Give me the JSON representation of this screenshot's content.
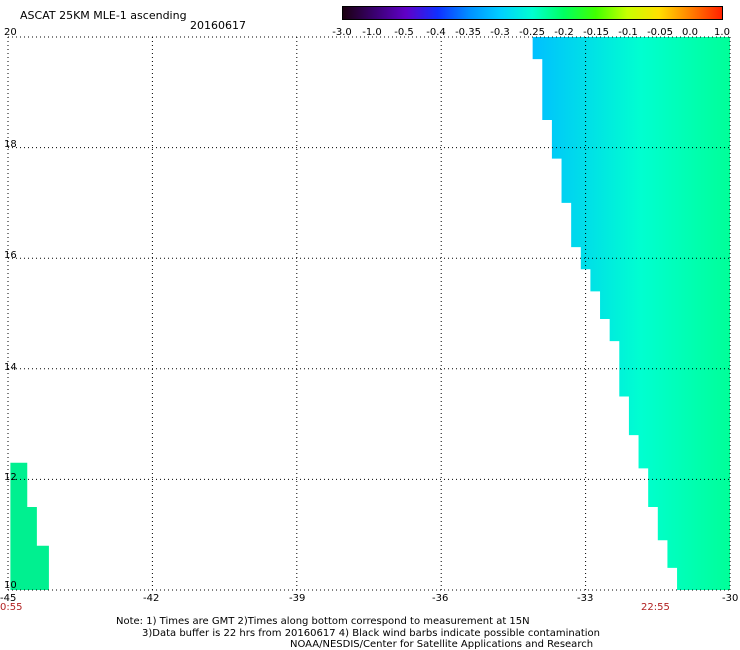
{
  "header": {
    "title": "ASCAT 25KM MLE-1 ascending",
    "date": "20160617"
  },
  "colorbar": {
    "labels": [
      "-3.0",
      "-1.0",
      "-0.5",
      "-0.4",
      "-0.35",
      "-0.3",
      "-0.25",
      "-0.2",
      "-0.15",
      "-0.1",
      "-0.05",
      "0.0",
      "1.0"
    ],
    "colors": [
      "#1a0010",
      "#3a0070",
      "#6000c8",
      "#1030ff",
      "#0090ff",
      "#00d0ff",
      "#00ffd0",
      "#00ff60",
      "#40ff00",
      "#c8ff00",
      "#ffe000",
      "#ff8000",
      "#ff2000"
    ]
  },
  "axes": {
    "x_ticks": [
      "-45",
      "-42",
      "-39",
      "-36",
      "-33",
      "-30"
    ],
    "y_ticks": [
      "20",
      "18",
      "16",
      "14",
      "12",
      "10"
    ],
    "x_range": [
      -45,
      -30
    ],
    "y_range": [
      10,
      20
    ],
    "grid": "dotted"
  },
  "times": {
    "left": "0:55",
    "right": "22:55"
  },
  "notes": {
    "line1": "Note: 1) Times are GMT 2)Times along bottom correspond to measurement at 15N",
    "line2": "3)Data buffer is 22 hrs from 20160617 4) Black wind barbs indicate possible contamination",
    "line3": "NOAA/NESDIS/Center for Satellite Applications and Research"
  },
  "swaths": {
    "east_swath_color": "#00ffd0",
    "west_swath_color": "#00f090",
    "low_value_color": "#00c0ff"
  }
}
